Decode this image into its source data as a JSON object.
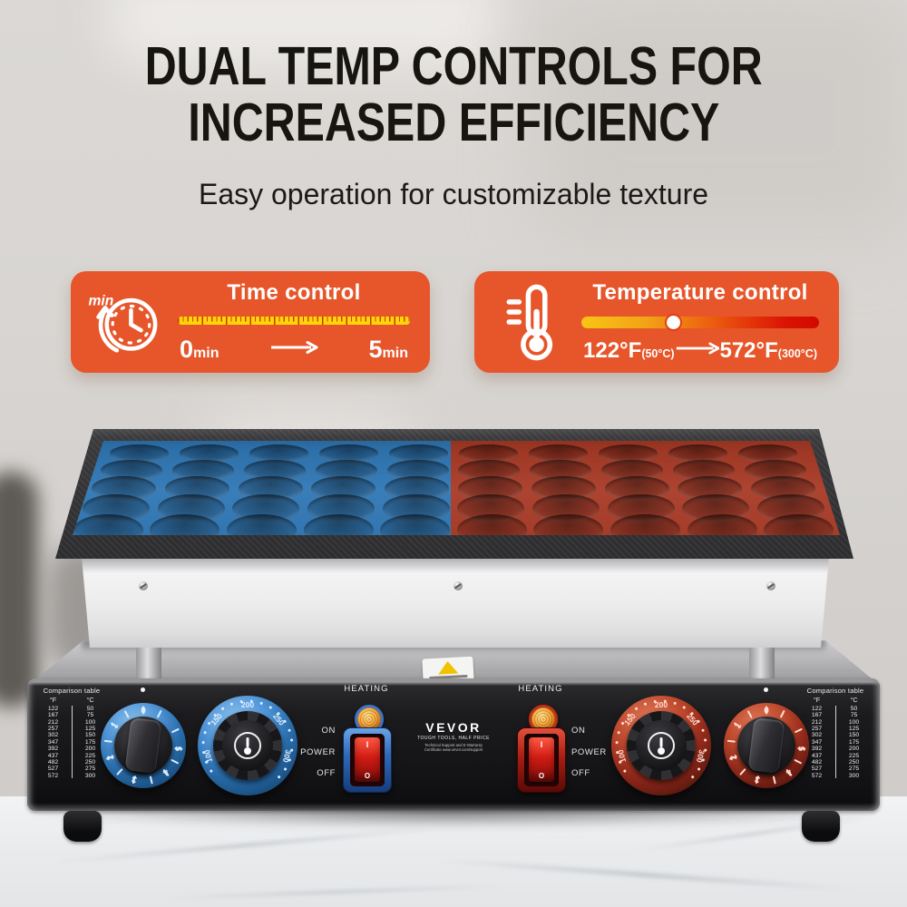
{
  "page": {
    "title_line1": "DUAL TEMP CONTROLS FOR",
    "title_line2": "INCREASED EFFICIENCY",
    "subtitle": "Easy operation for customizable texture"
  },
  "badges": {
    "time": {
      "title": "Time control",
      "icon_label": "min",
      "start_value": "0",
      "start_unit": "min",
      "end_value": "5",
      "end_unit": "min"
    },
    "temperature": {
      "title": "Temperature control",
      "start_f": "122°F",
      "start_c": "(50°C)",
      "end_f": "572°F",
      "end_c": "(300°C)"
    }
  },
  "machine": {
    "brand": {
      "name": "VEVOR",
      "slogan": "TOUGH TOOLS, HALF PRICE",
      "support_line1": "Technical Support and E-Warranty",
      "support_line2": "Certificate www.vevor.com/support"
    },
    "panel": {
      "heating_label": "HEATING",
      "switch": {
        "on": "ON",
        "power": "POWER",
        "off": "OFF",
        "rocker_on": "I",
        "rocker_off": "O"
      },
      "comparison": {
        "title": "Comparison table",
        "col_f": "°F",
        "col_c": "°C",
        "rows": [
          [
            "122",
            "50"
          ],
          [
            "167",
            "75"
          ],
          [
            "212",
            "100"
          ],
          [
            "257",
            "125"
          ],
          [
            "302",
            "150"
          ],
          [
            "347",
            "175"
          ],
          [
            "392",
            "200"
          ],
          [
            "437",
            "225"
          ],
          [
            "482",
            "250"
          ],
          [
            "527",
            "275"
          ],
          [
            "572",
            "300"
          ]
        ]
      },
      "timer_scale": [
        "0",
        "1",
        "2",
        "3",
        "4",
        "5"
      ],
      "temp_scale": [
        "100",
        "150",
        "200",
        "250",
        "300"
      ]
    }
  },
  "colors": {
    "accent_orange": "#e6562a",
    "ruler_yellow": "#ffd60a",
    "plate_blue": "#2f77b5",
    "plate_red": "#a83a26",
    "switch_rocker_red": "#d01c14",
    "lamp_amber": "#f2a73a",
    "panel_black": "#141417",
    "marble_white": "#eef0f2"
  }
}
